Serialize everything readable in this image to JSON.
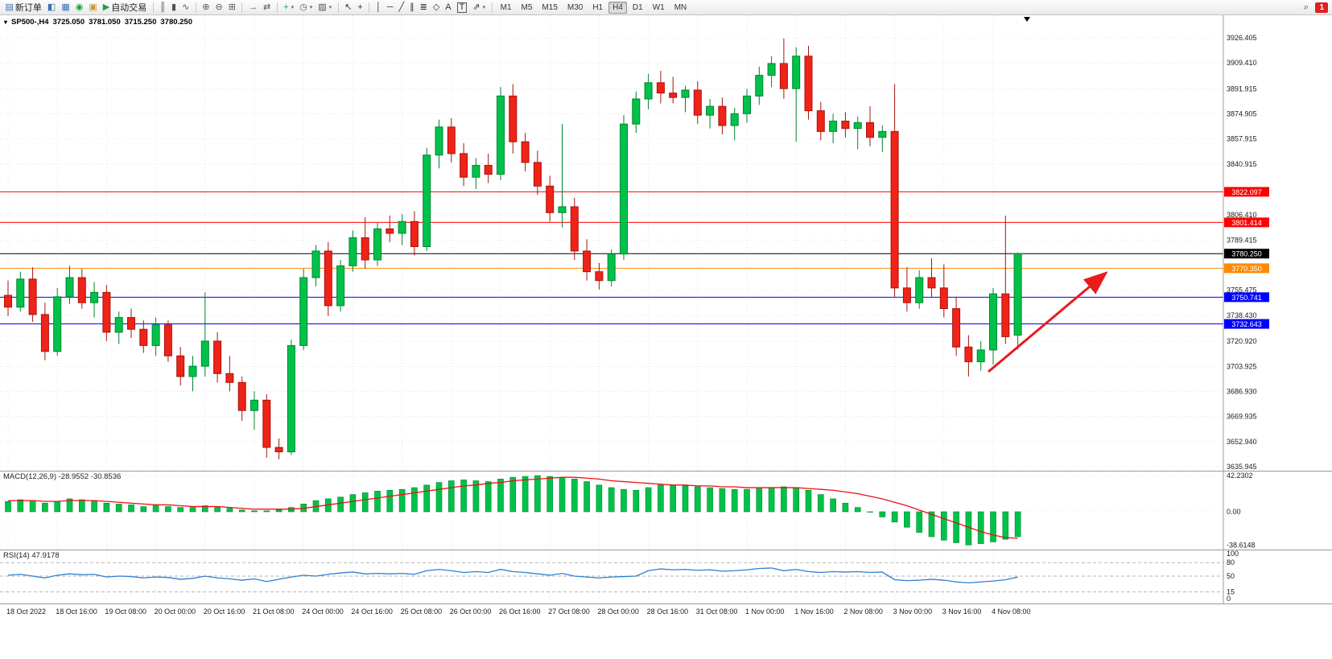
{
  "toolbar": {
    "buttons": [
      {
        "name": "new-order-button",
        "glyph": "▤",
        "glyph_color": "#3c6eb4",
        "label": "新订单"
      },
      {
        "name": "charts-button",
        "glyph": "◧",
        "glyph_color": "#3c6eb4"
      },
      {
        "name": "profiles-button",
        "glyph": "▦",
        "glyph_color": "#3c6eb4"
      },
      {
        "name": "market-watch-button",
        "glyph": "◉",
        "glyph_color": "#1f9d44"
      },
      {
        "name": "navigator-button",
        "glyph": "▣",
        "glyph_color": "#c9972c"
      },
      {
        "name": "autotrading-button",
        "glyph": "▶",
        "glyph_color": "#1f9d44",
        "label": "自动交易"
      },
      {
        "sep": true
      },
      {
        "name": "bar-chart-button",
        "glyph": "║",
        "glyph_color": "#555"
      },
      {
        "name": "candlestick-button",
        "glyph": "▮",
        "glyph_color": "#555"
      },
      {
        "name": "line-chart-button",
        "glyph": "∿",
        "glyph_color": "#555"
      },
      {
        "sep": true
      },
      {
        "name": "zoom-in-button",
        "glyph": "⊕",
        "glyph_color": "#555"
      },
      {
        "name": "zoom-out-button",
        "glyph": "⊖",
        "glyph_color": "#555"
      },
      {
        "name": "tile-windows-button",
        "glyph": "⊞",
        "glyph_color": "#555"
      },
      {
        "sep": true
      },
      {
        "name": "auto-scroll-button",
        "glyph": "→",
        "glyph_color": "#555"
      },
      {
        "name": "chart-shift-button",
        "glyph": "⇄",
        "glyph_color": "#555"
      },
      {
        "sep": true
      },
      {
        "name": "add-indicator-button",
        "glyph": "+",
        "glyph_color": "#1f9d44",
        "dropdown": true
      },
      {
        "name": "period-button",
        "glyph": "◷",
        "glyph_color": "#555",
        "dropdown": true
      },
      {
        "name": "template-button",
        "glyph": "▨",
        "glyph_color": "#555",
        "dropdown": true
      },
      {
        "sep": true
      },
      {
        "name": "cursor-button",
        "glyph": "↖",
        "glyph_color": "#333"
      },
      {
        "name": "crosshair-button",
        "glyph": "+",
        "glyph_color": "#333"
      },
      {
        "sep": true
      },
      {
        "name": "vertical-line-button",
        "glyph": "│",
        "glyph_color": "#333"
      },
      {
        "name": "horizontal-line-button",
        "glyph": "─",
        "glyph_color": "#333"
      },
      {
        "name": "trendline-button",
        "glyph": "╱",
        "glyph_color": "#333"
      },
      {
        "name": "channel-button",
        "glyph": "∥",
        "glyph_color": "#333"
      },
      {
        "name": "fibonacci-button",
        "glyph": "≣",
        "glyph_color": "#333"
      },
      {
        "name": "shapes-button",
        "glyph": "◇",
        "glyph_color": "#333"
      },
      {
        "name": "text-button",
        "glyph": "A",
        "glyph_color": "#333"
      },
      {
        "name": "text-label-button",
        "glyph": "T",
        "glyph_color": "#333",
        "boxed": true
      },
      {
        "name": "arrows-button",
        "glyph": "⇗",
        "glyph_color": "#333",
        "dropdown": true
      },
      {
        "sep": true
      }
    ],
    "timeframes": [
      "M1",
      "M5",
      "M15",
      "M30",
      "H1",
      "H4",
      "D1",
      "W1",
      "MN"
    ],
    "active_timeframe": "H4",
    "search_glyph": "⌕",
    "notification_count": "1"
  },
  "quote_header": {
    "caret": "▾",
    "symbol": "SP500-,H4",
    "open": "3725.050",
    "high": "3781.050",
    "low": "3715.250",
    "close": "3780.250"
  },
  "chart_data": {
    "type": "candlestick",
    "symbol": "SP500-",
    "timeframe": "H4",
    "title": "SP500-,H4 3725.050 3781.050 3715.250 3780.250",
    "time_labels": [
      "18 Oct 2022",
      "18 Oct 16:00",
      "19 Oct 08:00",
      "20 Oct 00:00",
      "20 Oct 16:00",
      "21 Oct 08:00",
      "24 Oct 00:00",
      "24 Oct 16:00",
      "25 Oct 08:00",
      "26 Oct 00:00",
      "26 Oct 16:00",
      "27 Oct 08:00",
      "28 Oct 00:00",
      "28 Oct 16:00",
      "31 Oct 08:00",
      "1 Nov 00:00",
      "1 Nov 16:00",
      "2 Nov 08:00",
      "3 Nov 00:00",
      "3 Nov 16:00",
      "4 Nov 08:00"
    ],
    "price_axis_ticks": [
      "3926.405",
      "3909.410",
      "3891.915",
      "3874.905",
      "3857.915",
      "3840.915",
      "3806.410",
      "3789.415",
      "3755.475",
      "3738.430",
      "3720.920",
      "3703.925",
      "3686.930",
      "3669.935",
      "3652.940",
      "3635.945"
    ],
    "price_levels": [
      {
        "price": 3822.097,
        "label": "3822.097",
        "color": "#ff0000"
      },
      {
        "price": 3801.414,
        "label": "3801.414",
        "color": "#ff0000"
      },
      {
        "price": 3780.25,
        "label": "3780.250",
        "color": "#000000"
      },
      {
        "price": 3770.35,
        "label": "3770.350",
        "color": "#ff8a00"
      },
      {
        "price": 3750.741,
        "label": "3750.741",
        "color": "#0000ff"
      },
      {
        "price": 3732.643,
        "label": "3732.643",
        "color": "#0000ff"
      }
    ],
    "candles": [
      [
        3752,
        3762,
        3738,
        3744
      ],
      [
        3744,
        3768,
        3741,
        3763
      ],
      [
        3763,
        3771,
        3734,
        3739
      ],
      [
        3739,
        3747,
        3708,
        3714
      ],
      [
        3714,
        3757,
        3711,
        3751
      ],
      [
        3751,
        3772,
        3746,
        3764
      ],
      [
        3764,
        3770,
        3743,
        3747
      ],
      [
        3747,
        3761,
        3737,
        3754
      ],
      [
        3754,
        3759,
        3721,
        3727
      ],
      [
        3727,
        3741,
        3719,
        3737
      ],
      [
        3737,
        3743,
        3723,
        3729
      ],
      [
        3729,
        3735,
        3713,
        3718
      ],
      [
        3718,
        3737,
        3711,
        3732
      ],
      [
        3732,
        3735,
        3707,
        3711
      ],
      [
        3711,
        3717,
        3691,
        3697
      ],
      [
        3697,
        3711,
        3687,
        3704
      ],
      [
        3704,
        3754,
        3697,
        3721
      ],
      [
        3721,
        3727,
        3693,
        3699
      ],
      [
        3699,
        3711,
        3687,
        3693
      ],
      [
        3693,
        3697,
        3667,
        3674
      ],
      [
        3674,
        3687,
        3661,
        3681
      ],
      [
        3681,
        3685,
        3642,
        3649
      ],
      [
        3649,
        3655,
        3641,
        3646
      ],
      [
        3646,
        3722,
        3644,
        3718
      ],
      [
        3718,
        3770,
        3715,
        3764
      ],
      [
        3764,
        3786,
        3758,
        3782
      ],
      [
        3782,
        3788,
        3738,
        3745
      ],
      [
        3745,
        3776,
        3741,
        3772
      ],
      [
        3772,
        3796,
        3768,
        3791
      ],
      [
        3791,
        3805,
        3770,
        3776
      ],
      [
        3776,
        3801,
        3772,
        3797
      ],
      [
        3797,
        3806,
        3788,
        3794
      ],
      [
        3794,
        3807,
        3786,
        3802
      ],
      [
        3802,
        3809,
        3779,
        3785
      ],
      [
        3785,
        3852,
        3782,
        3847
      ],
      [
        3847,
        3871,
        3838,
        3866
      ],
      [
        3866,
        3872,
        3842,
        3848
      ],
      [
        3848,
        3855,
        3826,
        3832
      ],
      [
        3832,
        3845,
        3824,
        3840
      ],
      [
        3840,
        3848,
        3828,
        3834
      ],
      [
        3834,
        3893,
        3830,
        3887
      ],
      [
        3887,
        3895,
        3848,
        3856
      ],
      [
        3856,
        3862,
        3836,
        3842
      ],
      [
        3842,
        3850,
        3820,
        3826
      ],
      [
        3826,
        3833,
        3802,
        3808
      ],
      [
        3808,
        3868,
        3798,
        3812
      ],
      [
        3812,
        3818,
        3776,
        3782
      ],
      [
        3782,
        3790,
        3762,
        3768
      ],
      [
        3768,
        3774,
        3756,
        3762
      ],
      [
        3762,
        3783,
        3758,
        3780
      ],
      [
        3780,
        3874,
        3776,
        3868
      ],
      [
        3868,
        3890,
        3862,
        3885
      ],
      [
        3885,
        3902,
        3878,
        3896
      ],
      [
        3896,
        3904,
        3882,
        3889
      ],
      [
        3889,
        3900,
        3882,
        3886
      ],
      [
        3886,
        3894,
        3876,
        3891
      ],
      [
        3891,
        3897,
        3868,
        3874
      ],
      [
        3874,
        3885,
        3865,
        3880
      ],
      [
        3880,
        3886,
        3861,
        3867
      ],
      [
        3867,
        3879,
        3857,
        3875
      ],
      [
        3875,
        3892,
        3869,
        3887
      ],
      [
        3887,
        3907,
        3881,
        3901
      ],
      [
        3901,
        3914,
        3893,
        3909
      ],
      [
        3909,
        3926,
        3885,
        3892
      ],
      [
        3892,
        3920,
        3856,
        3914
      ],
      [
        3914,
        3921,
        3871,
        3877
      ],
      [
        3877,
        3883,
        3857,
        3863
      ],
      [
        3863,
        3875,
        3855,
        3870
      ],
      [
        3870,
        3876,
        3859,
        3865
      ],
      [
        3865,
        3873,
        3851,
        3869
      ],
      [
        3869,
        3880,
        3853,
        3859
      ],
      [
        3859,
        3867,
        3849,
        3863
      ],
      [
        3863,
        3895,
        3751,
        3757
      ],
      [
        3757,
        3771,
        3741,
        3747
      ],
      [
        3747,
        3769,
        3743,
        3764
      ],
      [
        3764,
        3777,
        3751,
        3757
      ],
      [
        3757,
        3773,
        3737,
        3743
      ],
      [
        3743,
        3751,
        3711,
        3717
      ],
      [
        3717,
        3725,
        3697,
        3707
      ],
      [
        3707,
        3721,
        3701,
        3715
      ],
      [
        3715,
        3757,
        3705,
        3753
      ],
      [
        3753,
        3806,
        3719,
        3724
      ],
      [
        3725.05,
        3781.05,
        3715.25,
        3780.25
      ]
    ],
    "macd": {
      "label": "MACD(12,26,9) -28.9552 -30.8536",
      "axis_ticks": [
        "42.2302",
        "0.00",
        "-38.6148"
      ],
      "histogram": [
        12,
        14,
        13,
        10,
        12,
        15,
        14,
        13,
        10,
        9,
        8,
        6,
        7,
        6,
        5,
        5,
        7,
        5,
        4,
        2,
        1,
        1,
        2,
        5,
        9,
        13,
        15,
        17,
        20,
        22,
        24,
        25,
        26,
        28,
        31,
        34,
        36,
        37,
        36,
        35,
        38,
        40,
        41,
        42,
        41,
        40,
        38,
        35,
        31,
        28,
        26,
        25,
        28,
        31,
        31,
        30,
        29,
        28,
        27,
        26,
        26,
        27,
        28,
        29,
        28,
        25,
        20,
        15,
        10,
        5,
        0,
        -6,
        -12,
        -18,
        -24,
        -29,
        -33,
        -36,
        -38.6,
        -37,
        -35,
        -32,
        -28.96
      ],
      "signal": [
        13,
        13,
        13,
        12,
        12,
        13,
        13,
        13,
        12,
        11,
        10,
        9,
        8,
        8,
        7,
        6,
        6,
        6,
        5,
        4,
        3,
        3,
        3,
        3,
        4,
        6,
        8,
        10,
        12,
        14,
        16,
        18,
        20,
        22,
        24,
        26,
        28,
        30,
        31,
        33,
        34,
        36,
        37,
        38,
        39,
        40,
        40,
        39,
        38,
        36,
        35,
        34,
        33,
        32,
        31,
        31,
        30,
        30,
        29,
        29,
        28,
        28,
        28,
        28,
        28,
        27,
        26,
        25,
        23,
        21,
        18,
        15,
        11,
        7,
        2,
        -3,
        -8,
        -13,
        -18,
        -23,
        -27,
        -30,
        -30.85
      ]
    },
    "rsi": {
      "label": "RSI(14) 47.9178",
      "axis_ticks": [
        "100",
        "80",
        "50",
        "15",
        "0"
      ],
      "levels": [
        80,
        50,
        15
      ],
      "values": [
        52,
        54,
        50,
        46,
        52,
        55,
        53,
        54,
        48,
        50,
        49,
        46,
        48,
        47,
        43,
        45,
        50,
        46,
        44,
        41,
        44,
        38,
        43,
        48,
        52,
        50,
        54,
        57,
        59,
        55,
        56,
        55,
        56,
        54,
        62,
        65,
        62,
        58,
        60,
        58,
        65,
        60,
        58,
        55,
        52,
        56,
        50,
        48,
        46,
        48,
        49,
        50,
        62,
        66,
        64,
        65,
        63,
        64,
        61,
        62,
        64,
        67,
        68,
        62,
        65,
        60,
        58,
        60,
        59,
        60,
        58,
        59,
        42,
        40,
        41,
        43,
        41,
        37,
        35,
        37,
        39,
        42,
        47.92
      ]
    },
    "annotation_arrow": {
      "from": [
        1228,
        443
      ],
      "to": [
        1372,
        322
      ],
      "color": "#e81c1c"
    },
    "colors": {
      "up": "#00c24a",
      "up_dark": "#00842f",
      "down": "#ef2318",
      "down_dark": "#a8140c",
      "grid": "#e4e4e4",
      "macd_fill": "#00c24a",
      "macd_stroke": "#00842f",
      "macd_signal": "#ee1111",
      "rsi_line": "#2f7fd1"
    }
  }
}
